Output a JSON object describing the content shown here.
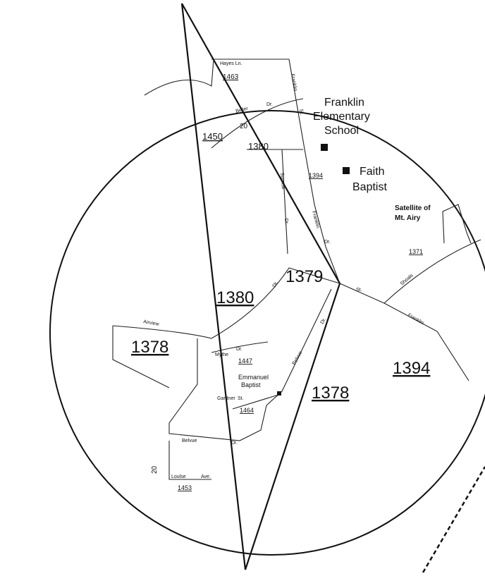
{
  "parcels": [
    "1463",
    "1450",
    "1380",
    "1394",
    "1371",
    "1380",
    "1379",
    "1378",
    "1447",
    "1464",
    "1394",
    "1378",
    "1453"
  ],
  "streets": [
    "Hayes Ln.",
    "Beller",
    "Dr.",
    "20",
    "Franklin",
    "St.",
    "Sunrise",
    "Dr.",
    "Franklin",
    "Dr.",
    "Shoals",
    "Franklin",
    "Airview",
    "Dr.",
    "Mythe",
    "Dr.",
    "Belvue",
    "Dr.",
    "Gardner",
    "St.",
    "Belvue",
    "Dr.",
    "20",
    "Loulse",
    "Ave.",
    "St."
  ],
  "places": [
    "Franklin",
    "Elementary",
    "School",
    "Faith",
    "Baptist",
    "Satellite of",
    "Mt. Airy",
    "Emmanuel",
    "Baptist"
  ]
}
